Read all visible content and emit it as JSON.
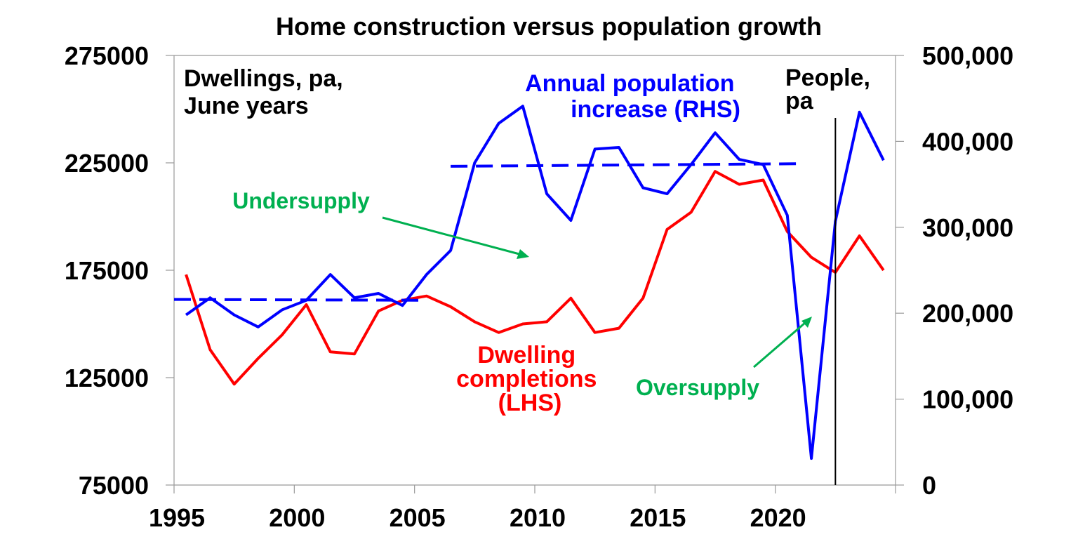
{
  "chart_data": {
    "type": "line",
    "title": "Home construction versus population growth",
    "left_axis": {
      "label_lines": [
        "Dwellings, pa,",
        "June years"
      ],
      "range": [
        75000,
        275000
      ],
      "ticks": [
        "75000",
        "125000",
        "175000",
        "225000",
        "275000"
      ]
    },
    "right_axis": {
      "label_lines": [
        "People,",
        "pa"
      ],
      "range": [
        0,
        500000
      ],
      "ticks": [
        "0",
        "100,000",
        "200,000",
        "300,000",
        "400,000",
        "500,000"
      ]
    },
    "x_axis": {
      "range": [
        1995,
        2025
      ],
      "ticks": [
        "1995",
        "2000",
        "2005",
        "2010",
        "2015",
        "2020"
      ]
    },
    "x": [
      1995.5,
      1996.5,
      1997.5,
      1998.5,
      1999.5,
      2000.5,
      2001.5,
      2002.5,
      2003.5,
      2004.5,
      2005.5,
      2006.5,
      2007.5,
      2008.5,
      2009.5,
      2010.5,
      2011.5,
      2012.5,
      2013.5,
      2014.5,
      2015.5,
      2016.5,
      2017.5,
      2018.5,
      2019.5,
      2020.5,
      2021.5,
      2022.5,
      2023.5,
      2024.5
    ],
    "series": [
      {
        "name_lines": [
          "Dwelling",
          "completions",
          "(LHS)"
        ],
        "axis": "left",
        "color": "#ff0000",
        "values": [
          173000,
          138000,
          122000,
          134000,
          145000,
          159000,
          137000,
          136000,
          156000,
          161000,
          163000,
          158000,
          151000,
          146000,
          150000,
          151000,
          162000,
          146000,
          148000,
          162000,
          194000,
          202000,
          221000,
          215000,
          217000,
          193000,
          181000,
          174000,
          191000,
          175000
        ]
      },
      {
        "name_lines": [
          "Annual population",
          "increase (RHS)"
        ],
        "axis": "right",
        "color": "#0000ff",
        "values": [
          198000,
          218000,
          198000,
          184000,
          204000,
          215000,
          245000,
          218000,
          223000,
          209000,
          245000,
          273000,
          375000,
          421000,
          441000,
          339000,
          308000,
          391000,
          393000,
          346000,
          339000,
          373000,
          410000,
          379000,
          373000,
          314000,
          31000,
          307000,
          434000,
          378000
        ]
      },
      {
        "name": "",
        "axis": "right",
        "style": "dashed",
        "color": "#0000ff",
        "x": [
          1995.0,
          2005.5
        ],
        "values": [
          216000,
          215000
        ]
      },
      {
        "name": "",
        "axis": "right",
        "style": "dashed",
        "color": "#0000ff",
        "x": [
          2006.5,
          2021.1
        ],
        "values": [
          371000,
          374000
        ]
      }
    ],
    "vertical_marker_x": 2022.5,
    "annotations": [
      {
        "text": "Undersupply",
        "color": "#00b050"
      },
      {
        "text": "Oversupply",
        "color": "#00b050"
      }
    ]
  }
}
